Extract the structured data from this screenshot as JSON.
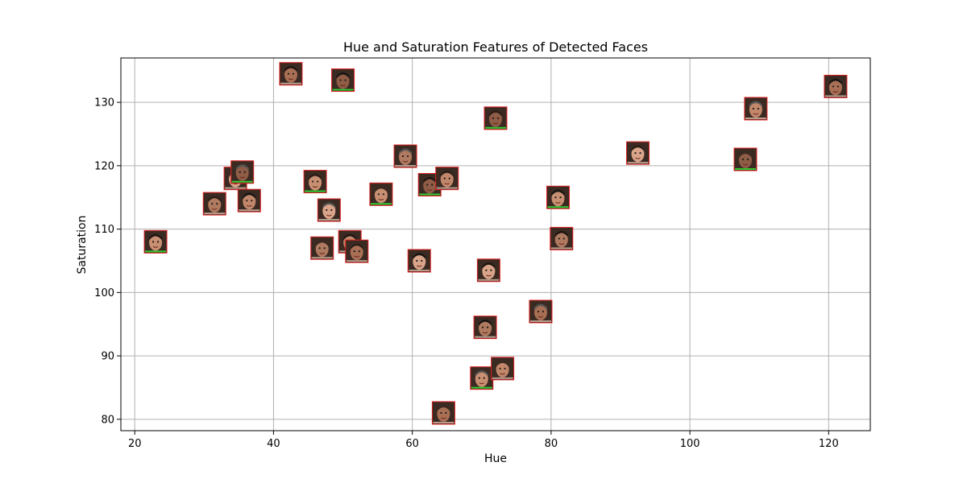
{
  "chart_data": {
    "type": "scatter",
    "title": "Hue and Saturation Features of Detected Faces",
    "xlabel": "Hue",
    "ylabel": "Saturation",
    "xlim": [
      18,
      126
    ],
    "ylim": [
      78.2,
      137
    ],
    "xticks": [
      20,
      40,
      60,
      80,
      100,
      120
    ],
    "yticks": [
      80,
      90,
      100,
      110,
      120,
      130
    ],
    "grid": true,
    "marker": "face-thumbnail",
    "points": [
      {
        "x": 23,
        "y": 108
      },
      {
        "x": 31.5,
        "y": 114
      },
      {
        "x": 34.5,
        "y": 118
      },
      {
        "x": 35.5,
        "y": 119
      },
      {
        "x": 36.5,
        "y": 114.5
      },
      {
        "x": 42.5,
        "y": 134.5
      },
      {
        "x": 46,
        "y": 117.5
      },
      {
        "x": 47,
        "y": 107
      },
      {
        "x": 48,
        "y": 113
      },
      {
        "x": 50,
        "y": 133.5
      },
      {
        "x": 51,
        "y": 108
      },
      {
        "x": 52,
        "y": 106.5
      },
      {
        "x": 55.5,
        "y": 115.5
      },
      {
        "x": 59,
        "y": 121.5
      },
      {
        "x": 61,
        "y": 105
      },
      {
        "x": 62.5,
        "y": 117
      },
      {
        "x": 65,
        "y": 118
      },
      {
        "x": 64.5,
        "y": 81
      },
      {
        "x": 70,
        "y": 86.5
      },
      {
        "x": 70.5,
        "y": 94.5
      },
      {
        "x": 71,
        "y": 103.5
      },
      {
        "x": 72,
        "y": 127.5
      },
      {
        "x": 73,
        "y": 88
      },
      {
        "x": 78.5,
        "y": 97
      },
      {
        "x": 81,
        "y": 115
      },
      {
        "x": 81.5,
        "y": 108.5
      },
      {
        "x": 92.5,
        "y": 122
      },
      {
        "x": 108,
        "y": 121
      },
      {
        "x": 109.5,
        "y": 129
      },
      {
        "x": 121,
        "y": 132.5
      }
    ]
  },
  "colors": {
    "frame": "#000000",
    "grid": "#b0b0b0",
    "marker_border": "#e02020",
    "marker_accent": "#33cc33"
  }
}
